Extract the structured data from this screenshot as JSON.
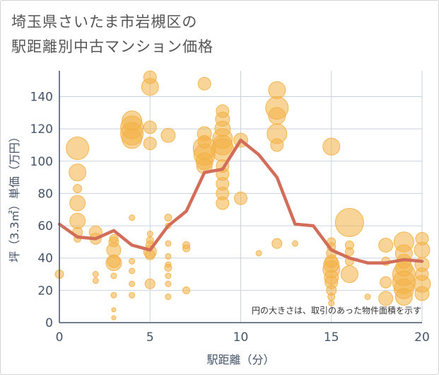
{
  "title": {
    "line1": "埼玉県さいたま市岩槻区の",
    "line2": "駅距離別中古マンション価格"
  },
  "chart_data": {
    "type": "scatter",
    "xlabel": "駅距離（分）",
    "ylabel": "坪（3.3㎡）単価（万円）",
    "xlim": [
      0,
      20
    ],
    "ylim": [
      0,
      156
    ],
    "xticks": [
      0,
      5,
      10,
      15,
      20
    ],
    "yticks": [
      0,
      20,
      40,
      60,
      80,
      100,
      120,
      140
    ],
    "grid": true,
    "note": "円の大きさは、取引のあった物件面積を示す",
    "colors": {
      "bubble": "#f3b146",
      "line": "#d26d5a",
      "grid": "#c8d3e0",
      "axis": "#44546a"
    },
    "series": [
      {
        "type": "bubble",
        "points": [
          [
            0,
            30,
            6
          ],
          [
            1,
            108,
            16
          ],
          [
            1,
            93,
            12
          ],
          [
            1,
            83,
            6
          ],
          [
            1,
            74,
            11
          ],
          [
            1,
            63,
            11
          ],
          [
            1,
            56,
            7
          ],
          [
            1,
            52,
            5
          ],
          [
            2,
            56,
            9
          ],
          [
            2,
            52,
            8
          ],
          [
            2,
            30,
            4
          ],
          [
            2,
            26,
            4
          ],
          [
            3,
            52,
            6
          ],
          [
            3,
            50,
            7
          ],
          [
            3,
            45,
            10
          ],
          [
            3,
            38,
            9
          ],
          [
            3,
            37,
            11
          ],
          [
            3,
            29,
            4
          ],
          [
            3,
            17,
            4
          ],
          [
            3,
            8,
            3
          ],
          [
            3,
            3,
            3
          ],
          [
            4,
            125,
            14
          ],
          [
            4,
            121,
            16
          ],
          [
            4,
            117,
            16
          ],
          [
            4,
            114,
            14
          ],
          [
            4,
            65,
            4
          ],
          [
            4,
            38,
            4
          ],
          [
            4,
            32,
            4
          ],
          [
            4,
            24,
            4
          ],
          [
            4,
            17,
            4
          ],
          [
            5,
            152,
            9
          ],
          [
            5,
            146,
            12
          ],
          [
            5,
            121,
            9
          ],
          [
            5,
            111,
            9
          ],
          [
            5,
            55,
            4
          ],
          [
            5,
            51,
            5
          ],
          [
            5,
            48,
            6
          ],
          [
            5,
            44,
            9
          ],
          [
            5,
            42,
            7
          ],
          [
            5,
            24,
            7
          ],
          [
            6,
            116,
            10
          ],
          [
            6,
            65,
            5
          ],
          [
            6,
            60,
            4
          ],
          [
            6,
            49,
            4
          ],
          [
            6,
            41,
            4
          ],
          [
            6,
            36,
            4
          ],
          [
            6,
            34,
            5
          ],
          [
            6,
            29,
            4
          ],
          [
            6,
            24,
            4
          ],
          [
            6,
            16,
            4
          ],
          [
            7,
            48,
            5
          ],
          [
            7,
            46,
            5
          ],
          [
            7,
            20,
            5
          ],
          [
            8,
            148,
            9
          ],
          [
            8,
            117,
            10
          ],
          [
            8,
            112,
            9
          ],
          [
            8,
            108,
            16
          ],
          [
            8,
            104,
            15
          ],
          [
            8,
            100,
            12
          ],
          [
            8,
            97,
            11
          ],
          [
            9,
            131,
            9
          ],
          [
            9,
            126,
            10
          ],
          [
            9,
            120,
            11
          ],
          [
            9,
            114,
            14
          ],
          [
            9,
            110,
            14
          ],
          [
            9,
            107,
            16
          ],
          [
            9,
            97,
            9
          ],
          [
            9,
            92,
            9
          ],
          [
            9,
            86,
            9
          ],
          [
            9,
            80,
            9
          ],
          [
            9,
            74,
            9
          ],
          [
            10,
            113,
            10
          ],
          [
            10,
            77,
            9
          ],
          [
            11,
            43,
            4
          ],
          [
            12,
            144,
            12
          ],
          [
            12,
            133,
            16
          ],
          [
            12,
            128,
            12
          ],
          [
            12,
            117,
            14
          ],
          [
            12,
            110,
            9
          ],
          [
            12,
            49,
            7
          ],
          [
            13,
            49,
            4
          ],
          [
            15,
            109,
            12
          ],
          [
            15,
            50,
            6
          ],
          [
            15,
            47,
            6
          ],
          [
            15,
            43,
            7
          ],
          [
            15,
            38,
            9
          ],
          [
            15,
            36,
            11
          ],
          [
            15,
            33,
            12
          ],
          [
            15,
            28,
            10
          ],
          [
            15,
            25,
            9
          ],
          [
            15,
            20,
            7
          ],
          [
            15,
            16,
            5
          ],
          [
            15,
            12,
            4
          ],
          [
            16,
            62,
            20
          ],
          [
            16,
            48,
            6
          ],
          [
            16,
            44,
            6
          ],
          [
            16,
            38,
            6
          ],
          [
            16,
            30,
            12
          ],
          [
            17,
            16,
            4
          ],
          [
            18,
            48,
            10
          ],
          [
            18,
            38,
            6
          ],
          [
            18,
            25,
            8
          ],
          [
            18,
            15,
            10
          ],
          [
            19,
            50,
            14
          ],
          [
            19,
            43,
            12
          ],
          [
            19,
            38,
            10
          ],
          [
            19,
            34,
            12
          ],
          [
            19,
            30,
            16
          ],
          [
            19,
            25,
            16
          ],
          [
            19,
            21,
            14
          ],
          [
            19,
            16,
            12
          ],
          [
            20,
            52,
            9
          ],
          [
            20,
            45,
            11
          ],
          [
            20,
            36,
            10
          ],
          [
            20,
            30,
            9
          ],
          [
            20,
            24,
            12
          ],
          [
            20,
            18,
            10
          ]
        ]
      },
      {
        "type": "line",
        "x": [
          0,
          1,
          2,
          3,
          4,
          5,
          6,
          7,
          8,
          9,
          10,
          11,
          12,
          13,
          14,
          15,
          16,
          17,
          18,
          19,
          20
        ],
        "values": [
          61,
          53,
          52,
          57,
          48,
          45,
          60,
          69,
          93,
          95,
          113,
          104,
          90,
          61,
          60,
          45,
          40,
          37,
          37,
          39,
          38
        ]
      }
    ]
  }
}
